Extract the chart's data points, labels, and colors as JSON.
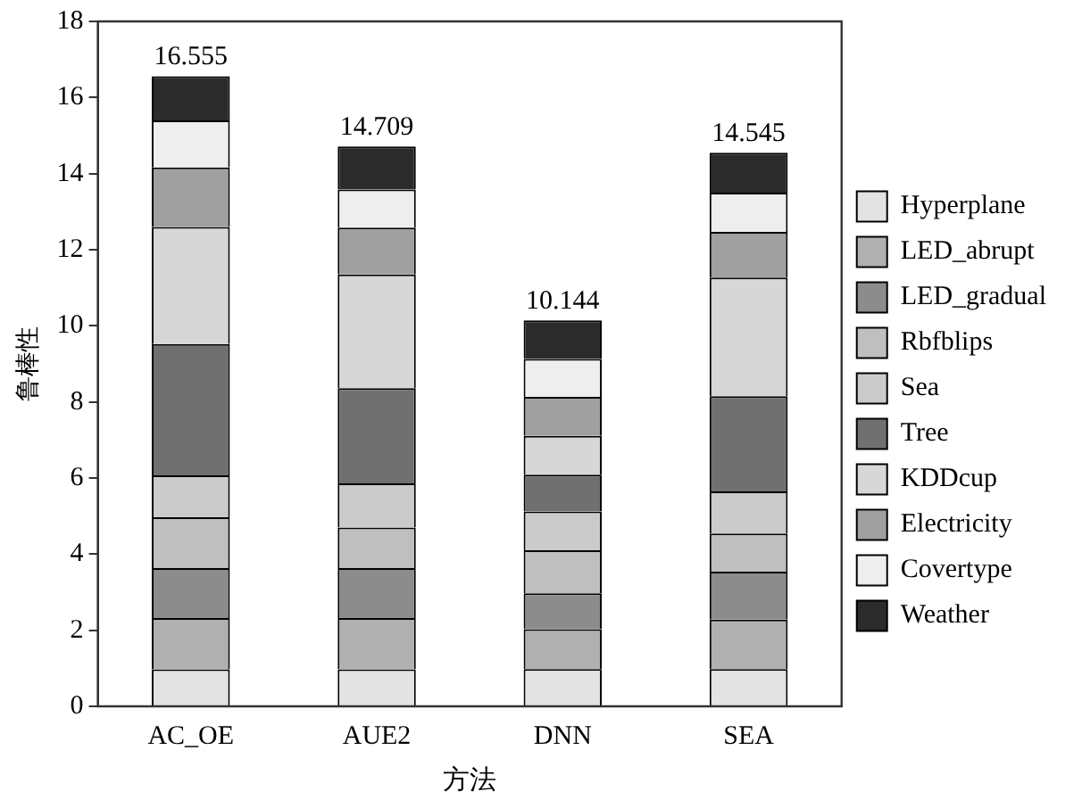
{
  "chart_data": {
    "type": "bar",
    "stacked": true,
    "xlabel": "方法",
    "ylabel": "鲁棒性",
    "categories": [
      "AC_OE",
      "AUE2",
      "DNN",
      "SEA"
    ],
    "ylim": [
      0,
      18
    ],
    "yticks": [
      0,
      2,
      4,
      6,
      8,
      10,
      12,
      14,
      16,
      18
    ],
    "legend": "right",
    "totals": [
      "16.555",
      "14.709",
      "10.144",
      "14.545"
    ],
    "series": [
      {
        "name": "Hyperplane",
        "color": "#e3e3e3",
        "values": [
          0.97,
          0.97,
          0.98,
          0.98
        ]
      },
      {
        "name": "LED_abrupt",
        "color": "#b0b0b0",
        "values": [
          1.35,
          1.35,
          1.05,
          1.3
        ]
      },
      {
        "name": "LED_gradual",
        "color": "#8c8c8c",
        "values": [
          1.31,
          1.31,
          0.94,
          1.26
        ]
      },
      {
        "name": "Rbfblips",
        "color": "#bfbfbf",
        "values": [
          1.34,
          1.07,
          1.13,
          1.0
        ]
      },
      {
        "name": "Sea",
        "color": "#cbcbcb",
        "values": [
          1.1,
          1.16,
          1.02,
          1.11
        ]
      },
      {
        "name": "Tree",
        "color": "#707070",
        "values": [
          3.45,
          2.5,
          0.97,
          2.5
        ]
      },
      {
        "name": "KDDcup",
        "color": "#d7d7d7",
        "values": [
          3.08,
          2.99,
          1.02,
          3.12
        ]
      },
      {
        "name": "Electricity",
        "color": "#a0a0a0",
        "values": [
          1.56,
          1.23,
          1.02,
          1.2
        ]
      },
      {
        "name": "Covertype",
        "color": "#eeeeee",
        "values": [
          1.24,
          1.0,
          1.0,
          1.03
        ]
      },
      {
        "name": "Weather",
        "color": "#2b2b2b",
        "values": [
          1.16,
          1.13,
          1.01,
          1.05
        ]
      }
    ]
  }
}
